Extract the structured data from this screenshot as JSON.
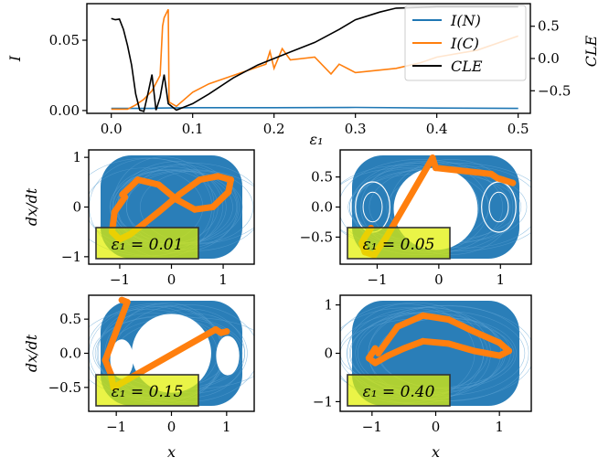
{
  "colors": {
    "blue": "#1f77b4",
    "orange": "#ff7f0e",
    "black": "#000000",
    "annotation_bg": "#e2f000"
  },
  "chart_data": [
    {
      "type": "line",
      "ylabel": "I",
      "y2label": "CLE",
      "xlim": [
        -0.03,
        0.515
      ],
      "ylim": [
        -0.002,
        0.076
      ],
      "y2lim": [
        -0.85,
        0.85
      ],
      "x_ticks": [
        "0.0",
        "0.1",
        "0.2",
        "0.3",
        "0.4",
        "0.5"
      ],
      "y_ticks": [
        "0.00",
        "0.05"
      ],
      "y2_ticks": [
        "0.5",
        "0.0",
        "−0.5"
      ],
      "legend_position": "top-right",
      "series": [
        {
          "name": "I(N)",
          "axis": "left",
          "color": "#1f77b4",
          "x": [
            0.0,
            0.05,
            0.06,
            0.1,
            0.2,
            0.3,
            0.4,
            0.5
          ],
          "y": [
            0.0015,
            0.0015,
            0.0018,
            0.002,
            0.002,
            0.0022,
            0.0018,
            0.0015
          ]
        },
        {
          "name": "I(C)",
          "axis": "left",
          "color": "#ff7f0e",
          "x": [
            0.0,
            0.02,
            0.03,
            0.04,
            0.05,
            0.06,
            0.063,
            0.065,
            0.07,
            0.071,
            0.08,
            0.1,
            0.12,
            0.15,
            0.18,
            0.19,
            0.195,
            0.2,
            0.21,
            0.22,
            0.25,
            0.27,
            0.28,
            0.3,
            0.35,
            0.38,
            0.4,
            0.45,
            0.5
          ],
          "y": [
            0.001,
            0.001,
            0.004,
            0.008,
            0.014,
            0.025,
            0.06,
            0.066,
            0.072,
            0.006,
            0.003,
            0.013,
            0.019,
            0.025,
            0.031,
            0.033,
            0.042,
            0.03,
            0.044,
            0.036,
            0.038,
            0.026,
            0.033,
            0.027,
            0.03,
            0.034,
            0.038,
            0.043,
            0.053
          ]
        },
        {
          "name": "CLE",
          "axis": "right",
          "color": "#000000",
          "x": [
            0.0,
            0.005,
            0.01,
            0.015,
            0.02,
            0.025,
            0.03,
            0.035,
            0.04,
            0.045,
            0.05,
            0.055,
            0.06,
            0.065,
            0.07,
            0.08,
            0.1,
            0.12,
            0.15,
            0.18,
            0.2,
            0.22,
            0.25,
            0.28,
            0.3,
            0.33,
            0.35,
            0.4,
            0.45,
            0.5
          ],
          "y": [
            0.62,
            0.6,
            0.61,
            0.45,
            0.2,
            -0.1,
            -0.55,
            -0.8,
            -0.82,
            -0.55,
            -0.25,
            -0.8,
            -0.6,
            -0.25,
            -0.7,
            -0.8,
            -0.7,
            -0.55,
            -0.3,
            -0.1,
            0.0,
            0.1,
            0.25,
            0.45,
            0.6,
            0.72,
            0.78,
            0.8,
            0.8,
            0.8
          ]
        }
      ]
    },
    {
      "type": "scatter",
      "annotation": "ε₁ = 0.01",
      "ylabel": "dx/dt",
      "xlim": [
        -1.6,
        1.6
      ],
      "ylim": [
        -1.15,
        1.15
      ],
      "x_ticks": [
        "−1",
        "0",
        "1"
      ],
      "y_ticks": [
        "1",
        "0",
        "−1"
      ],
      "series": [
        {
          "color": "#ff7f0e",
          "x": [
            -0.95,
            -0.65,
            -0.25,
            0.1,
            0.45,
            0.8,
            1.1,
            1.15,
            0.9,
            0.55,
            0.15,
            -0.25,
            -0.55,
            -0.8,
            -1.0,
            -1.15,
            -1.1,
            -0.9
          ],
          "y": [
            0.25,
            0.55,
            0.45,
            0.15,
            -0.05,
            0.0,
            0.3,
            0.55,
            0.62,
            0.55,
            0.25,
            -0.1,
            -0.35,
            -0.55,
            -0.65,
            -0.5,
            -0.1,
            0.2
          ]
        }
      ]
    },
    {
      "type": "scatter",
      "annotation": "ε₁ = 0.05",
      "xlim": [
        -1.6,
        1.5
      ],
      "ylim": [
        -0.95,
        0.95
      ],
      "x_ticks": [
        "−1",
        "0",
        "1"
      ],
      "y_ticks": [
        "0.5",
        "0.0",
        "−0.5"
      ],
      "y_top_label": "ε₁",
      "series": [
        {
          "color": "#ff7f0e",
          "x": [
            -1.1,
            -1.2,
            -1.25,
            -1.2,
            -1.05,
            -0.95,
            -0.85,
            -0.1,
            -0.05,
            0.85,
            0.95,
            1.05,
            1.2
          ],
          "y": [
            -0.35,
            -0.5,
            -0.6,
            -0.75,
            -0.8,
            -0.65,
            -0.5,
            0.82,
            0.65,
            0.55,
            0.48,
            0.45,
            0.4
          ]
        }
      ]
    },
    {
      "type": "scatter",
      "annotation": "ε₁ = 0.15",
      "xlabel": "x",
      "ylabel": "dx/dt",
      "xlim": [
        -1.5,
        1.5
      ],
      "ylim": [
        -0.85,
        0.85
      ],
      "x_ticks": [
        "−1",
        "0",
        "1"
      ],
      "y_ticks": [
        "0.5",
        "0.0",
        "−0.5"
      ],
      "series": [
        {
          "color": "#ff7f0e",
          "x": [
            -0.9,
            -0.8,
            -1.2,
            -1.1,
            -1.05,
            0.8,
            0.9,
            1.0
          ],
          "y": [
            0.78,
            0.75,
            -0.1,
            -0.3,
            -0.5,
            0.35,
            0.3,
            0.32
          ]
        }
      ]
    },
    {
      "type": "scatter",
      "annotation": "ε₁ = 0.40",
      "xlabel": "x",
      "xlim": [
        -1.5,
        1.5
      ],
      "ylim": [
        -1.2,
        1.2
      ],
      "x_ticks": [
        "−1",
        "0",
        "1"
      ],
      "y_ticks": [
        "1",
        "0",
        "−1"
      ],
      "series": [
        {
          "color": "#ff7f0e",
          "x": [
            -0.9,
            -0.6,
            -0.2,
            0.2,
            0.6,
            1.0,
            1.15,
            1.0,
            0.6,
            0.2,
            -0.2,
            -0.5,
            -0.75,
            -0.95,
            -1.05,
            -0.95
          ],
          "y": [
            0.0,
            0.55,
            0.78,
            0.7,
            0.45,
            0.22,
            0.05,
            -0.05,
            0.05,
            0.2,
            0.25,
            0.1,
            -0.05,
            -0.2,
            -0.1,
            0.1
          ]
        }
      ]
    }
  ]
}
